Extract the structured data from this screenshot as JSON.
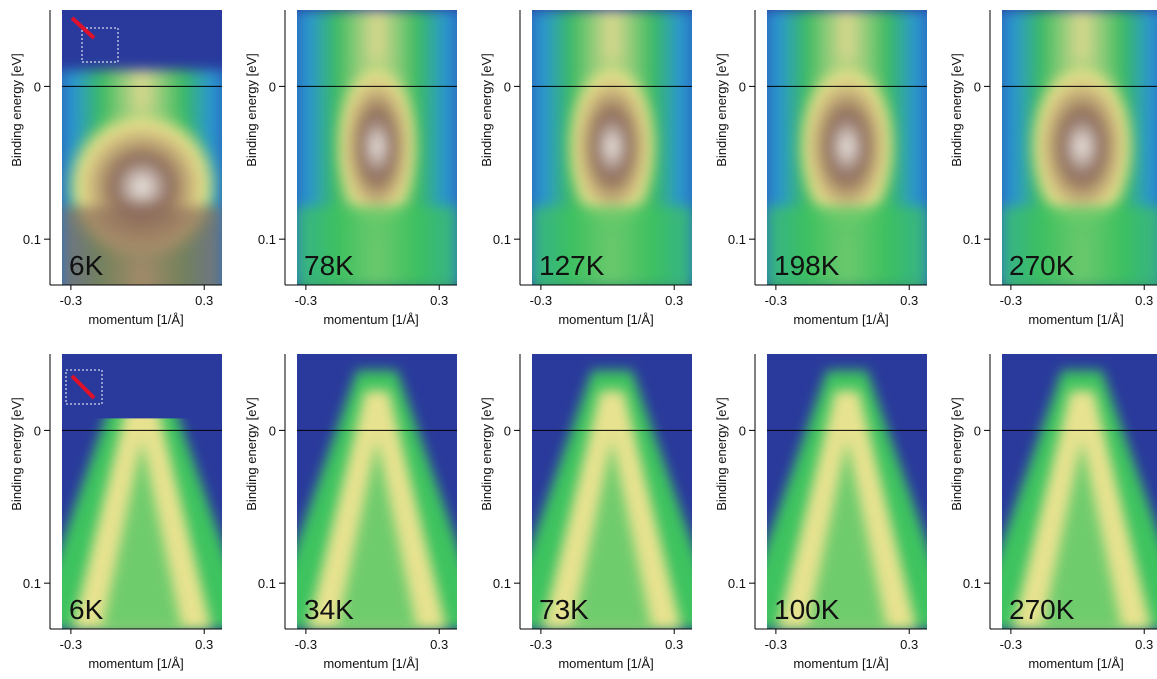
{
  "figure": {
    "ylabel": "Binding energy [eV]",
    "xlabel": "momentum [1/Å]",
    "xticks": [
      -0.3,
      0.3
    ],
    "yticks": [
      0,
      0.1
    ],
    "xlim": [
      -0.34,
      0.38
    ],
    "ylim": [
      -0.05,
      0.13
    ],
    "rows": [
      {
        "panels": [
          "6K",
          "78K",
          "127K",
          "198K",
          "270K"
        ]
      },
      {
        "panels": [
          "6K",
          "34K",
          "73K",
          "100K",
          "270K"
        ]
      }
    ]
  }
}
